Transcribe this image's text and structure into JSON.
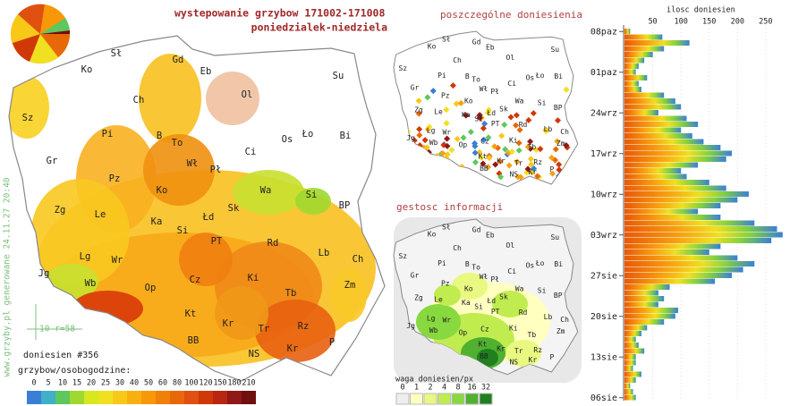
{
  "header": {
    "title": "wystepowanie grzybow 171002-171008",
    "subtitle": "poniedzialek-niedziela",
    "site_note": "www.grzyby.pl generowane 24.11.27 20:40",
    "radius_note": "10 r=58"
  },
  "main_map": {
    "labels": [
      "Sł",
      "Ko",
      "Gd",
      "Eb",
      "Ol",
      "Su",
      "Sz",
      "Ch",
      "Pi",
      "B",
      "To",
      "Ci",
      "Os",
      "Ło",
      "Bi",
      "Gr",
      "Wł",
      "Pł",
      "Pz",
      "Ko",
      "Wa",
      "Si",
      "Zg",
      "Le",
      "Ka",
      "Łd",
      "Sk",
      "BP",
      "Si",
      "PT",
      "Rd",
      "Lb",
      "Lg",
      "Wr",
      "Ch",
      "Jg",
      "Wb",
      "Op",
      "Cz",
      "Ki",
      "Tb",
      "Zm",
      "Kt",
      "Kr",
      "Rz",
      "Tr",
      "BB",
      "NS",
      "Kr",
      "P"
    ],
    "report_count": "doniesien #356",
    "legend_title": "grzybow/osobogodzine:",
    "legend_values": [
      0,
      5,
      10,
      15,
      20,
      25,
      30,
      40,
      50,
      60,
      80,
      100,
      120,
      150,
      180,
      210
    ],
    "legend_colors": [
      "#3a7fd5",
      "#3fb0c8",
      "#5ec85e",
      "#a0d830",
      "#d8e820",
      "#f0e020",
      "#f8c818",
      "#f8b010",
      "#f89808",
      "#f08008",
      "#e86808",
      "#e05010",
      "#d03808",
      "#b82810",
      "#901818",
      "#701010"
    ]
  },
  "points_map": {
    "title": "poszczególne doniesienia"
  },
  "density_map": {
    "title": "gestosc informacji",
    "legend_title": "waga doniesien/px",
    "legend_values": [
      0,
      1,
      2,
      4,
      8,
      16,
      32
    ],
    "legend_colors": [
      "#eeeeee",
      "#ffffc0",
      "#e8f880",
      "#c0ec50",
      "#88d840",
      "#50b030",
      "#208020"
    ]
  },
  "chart_data": {
    "type": "bar",
    "orientation": "horizontal",
    "title": "ilosc doniesien",
    "categories": [
      "08paz",
      null,
      null,
      null,
      null,
      null,
      null,
      "01paz",
      null,
      null,
      null,
      null,
      null,
      null,
      "24wrz",
      null,
      null,
      null,
      null,
      null,
      null,
      "17wrz",
      null,
      null,
      null,
      null,
      null,
      null,
      "10wrz",
      null,
      null,
      null,
      null,
      null,
      null,
      "03wrz",
      null,
      null,
      null,
      null,
      null,
      null,
      "27sie",
      null,
      null,
      null,
      null,
      null,
      null,
      "20sie",
      null,
      null,
      null,
      null,
      null,
      null,
      "13sie",
      null,
      null,
      null,
      null,
      null,
      null,
      "06sie"
    ],
    "values": [
      10,
      67,
      115,
      70,
      50,
      35,
      25,
      20,
      40,
      25,
      30,
      70,
      90,
      100,
      60,
      110,
      130,
      100,
      120,
      140,
      170,
      190,
      180,
      130,
      100,
      110,
      150,
      180,
      220,
      200,
      170,
      130,
      170,
      230,
      270,
      280,
      260,
      170,
      150,
      200,
      230,
      210,
      190,
      160,
      80,
      60,
      70,
      60,
      95,
      90,
      70,
      40,
      30,
      20,
      25,
      35,
      20,
      20,
      15,
      30,
      20,
      10,
      15,
      20
    ],
    "xlim": [
      0,
      293
    ],
    "xticks": [
      50,
      100,
      150,
      200,
      250
    ]
  }
}
